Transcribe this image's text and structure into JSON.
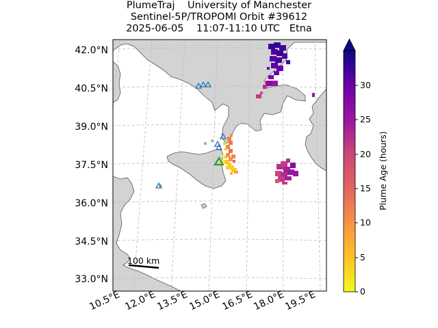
{
  "title": {
    "line1": "PlumeTraj    University of Manchester",
    "line2": "Sentinel-5P/TROPOMI Orbit #39612",
    "line3": "2025-06-05    11:07-11:10 UTC   Etna"
  },
  "map": {
    "lat_labels": [
      "42.0°N",
      "40.5°N",
      "39.0°N",
      "37.5°N",
      "36.0°N",
      "34.5°N",
      "33.0°N"
    ],
    "lon_labels": [
      "10.5°E",
      "12.0°E",
      "13.5°E",
      "15.0°E",
      "16.5°E",
      "18.0°E",
      "19.5°E"
    ],
    "scale_bar_label": "100 km",
    "gridlines": true,
    "colors": {
      "land": "#d3d3d3",
      "sea": "#ffffff",
      "coastline": "#555555",
      "volcano_marker": "#1f77b4",
      "target_volcano": "#2ca02c",
      "grid": "#bbbbbb"
    }
  },
  "colorbar": {
    "label": "Plume Age (hours)",
    "ticks": [
      "0",
      "5",
      "10",
      "15",
      "20",
      "25",
      "30"
    ],
    "min": 0,
    "max": 35,
    "colormap": "plasma_r",
    "extend": "max"
  }
}
